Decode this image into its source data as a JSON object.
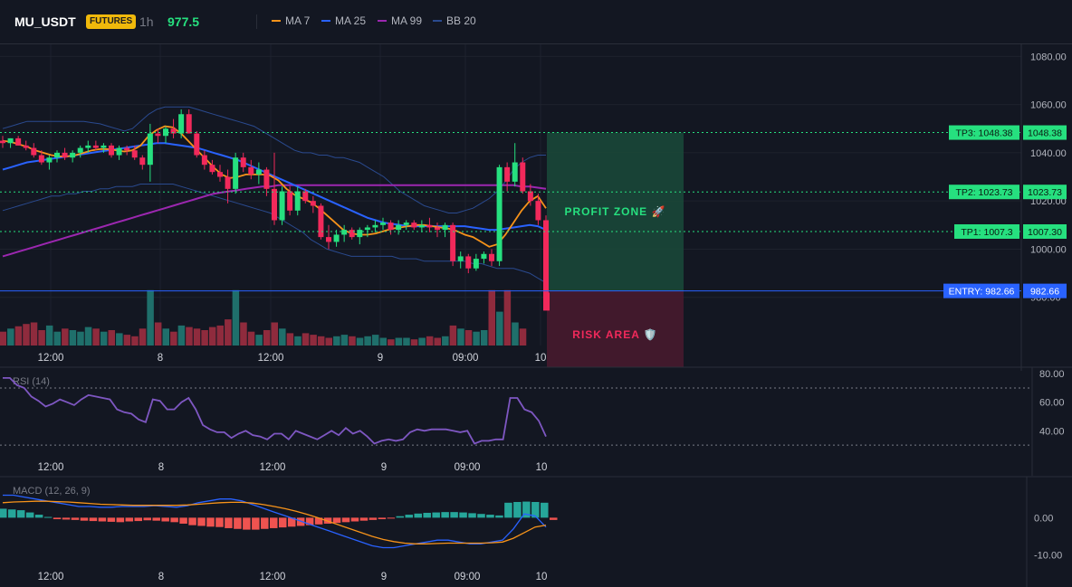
{
  "header": {
    "symbol": "MU_USDT",
    "badge": "FUTURES",
    "timeframe": "1h",
    "last_price": "977.5",
    "legend": [
      {
        "label": "MA 7",
        "color": "#f7931a"
      },
      {
        "label": "MA 25",
        "color": "#2962ff"
      },
      {
        "label": "MA 99",
        "color": "#9c27b0"
      },
      {
        "label": "BB 20",
        "color": "#2a4a8f"
      }
    ]
  },
  "colors": {
    "background": "#131722",
    "up": "#26e07f",
    "down": "#f2295b",
    "up_volume": "#1f6f6b",
    "down_volume": "#8f2b3d",
    "profit_zone": "#1a4a3a",
    "risk_area": "#4a1a2e",
    "entry_line": "#2962ff"
  },
  "chart_data": [
    {
      "type": "candlestick",
      "title": "",
      "ylim": [
        960,
        1085
      ],
      "y_ticks": [
        "1080.00",
        "1060.00",
        "1040.00",
        "1020.00",
        "1000.00",
        "980.00"
      ],
      "x_tick_labels": [
        "12:00",
        "8",
        "12:00",
        "9",
        "09:00",
        "10"
      ],
      "candles": [
        {
          "o": 1045,
          "h": 1047,
          "l": 1042,
          "c": 1044
        },
        {
          "o": 1044,
          "h": 1046,
          "l": 1042,
          "c": 1046
        },
        {
          "o": 1046,
          "h": 1047,
          "l": 1043,
          "c": 1043
        },
        {
          "o": 1043,
          "h": 1045,
          "l": 1041,
          "c": 1042
        },
        {
          "o": 1042,
          "h": 1044,
          "l": 1038,
          "c": 1039
        },
        {
          "o": 1039,
          "h": 1041,
          "l": 1035,
          "c": 1036
        },
        {
          "o": 1036,
          "h": 1039,
          "l": 1033,
          "c": 1038
        },
        {
          "o": 1038,
          "h": 1041,
          "l": 1036,
          "c": 1040
        },
        {
          "o": 1040,
          "h": 1042,
          "l": 1037,
          "c": 1038
        },
        {
          "o": 1038,
          "h": 1041,
          "l": 1036,
          "c": 1040
        },
        {
          "o": 1040,
          "h": 1043,
          "l": 1038,
          "c": 1042
        },
        {
          "o": 1042,
          "h": 1045,
          "l": 1040,
          "c": 1043
        },
        {
          "o": 1043,
          "h": 1045,
          "l": 1041,
          "c": 1042
        },
        {
          "o": 1042,
          "h": 1044,
          "l": 1040,
          "c": 1043
        },
        {
          "o": 1043,
          "h": 1044,
          "l": 1038,
          "c": 1039
        },
        {
          "o": 1039,
          "h": 1043,
          "l": 1037,
          "c": 1042
        },
        {
          "o": 1042,
          "h": 1043,
          "l": 1039,
          "c": 1041
        },
        {
          "o": 1041,
          "h": 1043,
          "l": 1037,
          "c": 1038
        },
        {
          "o": 1038,
          "h": 1039,
          "l": 1033,
          "c": 1035
        },
        {
          "o": 1035,
          "h": 1052,
          "l": 1028,
          "c": 1048
        },
        {
          "o": 1048,
          "h": 1050,
          "l": 1044,
          "c": 1047
        },
        {
          "o": 1047,
          "h": 1051,
          "l": 1044,
          "c": 1050
        },
        {
          "o": 1050,
          "h": 1054,
          "l": 1046,
          "c": 1048
        },
        {
          "o": 1048,
          "h": 1058,
          "l": 1046,
          "c": 1056
        },
        {
          "o": 1056,
          "h": 1058,
          "l": 1049,
          "c": 1048
        },
        {
          "o": 1048,
          "h": 1049,
          "l": 1038,
          "c": 1039
        },
        {
          "o": 1039,
          "h": 1041,
          "l": 1033,
          "c": 1035
        },
        {
          "o": 1035,
          "h": 1037,
          "l": 1031,
          "c": 1032
        },
        {
          "o": 1032,
          "h": 1035,
          "l": 1028,
          "c": 1030
        },
        {
          "o": 1030,
          "h": 1033,
          "l": 1019,
          "c": 1025
        },
        {
          "o": 1025,
          "h": 1040,
          "l": 1023,
          "c": 1038
        },
        {
          "o": 1038,
          "h": 1040,
          "l": 1032,
          "c": 1034
        },
        {
          "o": 1034,
          "h": 1037,
          "l": 1029,
          "c": 1031
        },
        {
          "o": 1031,
          "h": 1036,
          "l": 1027,
          "c": 1033
        },
        {
          "o": 1033,
          "h": 1034,
          "l": 1022,
          "c": 1025
        },
        {
          "o": 1025,
          "h": 1040,
          "l": 1010,
          "c": 1012
        },
        {
          "o": 1012,
          "h": 1026,
          "l": 1010,
          "c": 1024
        },
        {
          "o": 1024,
          "h": 1026,
          "l": 1014,
          "c": 1016
        },
        {
          "o": 1016,
          "h": 1026,
          "l": 1014,
          "c": 1024
        },
        {
          "o": 1024,
          "h": 1025,
          "l": 1019,
          "c": 1020
        },
        {
          "o": 1020,
          "h": 1022,
          "l": 1015,
          "c": 1018
        },
        {
          "o": 1018,
          "h": 1019,
          "l": 1004,
          "c": 1005
        },
        {
          "o": 1005,
          "h": 1010,
          "l": 1000,
          "c": 1003
        },
        {
          "o": 1003,
          "h": 1008,
          "l": 1001,
          "c": 1006
        },
        {
          "o": 1006,
          "h": 1010,
          "l": 1003,
          "c": 1008
        },
        {
          "o": 1008,
          "h": 1009,
          "l": 1004,
          "c": 1005
        },
        {
          "o": 1005,
          "h": 1009,
          "l": 1002,
          "c": 1008
        },
        {
          "o": 1008,
          "h": 1010,
          "l": 1005,
          "c": 1009
        },
        {
          "o": 1009,
          "h": 1012,
          "l": 1007,
          "c": 1010
        },
        {
          "o": 1010,
          "h": 1013,
          "l": 1008,
          "c": 1011
        },
        {
          "o": 1011,
          "h": 1012,
          "l": 1006,
          "c": 1008
        },
        {
          "o": 1008,
          "h": 1012,
          "l": 1006,
          "c": 1010
        },
        {
          "o": 1010,
          "h": 1012,
          "l": 1008,
          "c": 1011
        },
        {
          "o": 1011,
          "h": 1012,
          "l": 1008,
          "c": 1009
        },
        {
          "o": 1009,
          "h": 1012,
          "l": 1007,
          "c": 1010
        },
        {
          "o": 1010,
          "h": 1013,
          "l": 1007,
          "c": 1009
        },
        {
          "o": 1009,
          "h": 1011,
          "l": 1005,
          "c": 1008
        },
        {
          "o": 1008,
          "h": 1011,
          "l": 1005,
          "c": 1010
        },
        {
          "o": 1010,
          "h": 1011,
          "l": 993,
          "c": 995
        },
        {
          "o": 995,
          "h": 999,
          "l": 992,
          "c": 997
        },
        {
          "o": 997,
          "h": 998,
          "l": 990,
          "c": 992
        },
        {
          "o": 992,
          "h": 998,
          "l": 991,
          "c": 996
        },
        {
          "o": 996,
          "h": 999,
          "l": 994,
          "c": 998
        },
        {
          "o": 998,
          "h": 1000,
          "l": 993,
          "c": 995
        },
        {
          "o": 995,
          "h": 1035,
          "l": 993,
          "c": 1034
        },
        {
          "o": 1034,
          "h": 1036,
          "l": 1024,
          "c": 1028
        },
        {
          "o": 1028,
          "h": 1044,
          "l": 1026,
          "c": 1036
        },
        {
          "o": 1036,
          "h": 1038,
          "l": 1023,
          "c": 1024
        },
        {
          "o": 1024,
          "h": 1027,
          "l": 1018,
          "c": 1020
        },
        {
          "o": 1020,
          "h": 1023,
          "l": 1010,
          "c": 1012
        },
        {
          "o": 1012,
          "h": 1014,
          "l": 977,
          "c": 977.5
        }
      ],
      "ma7": [
        1045,
        1044.5,
        1043.5,
        1042.5,
        1041,
        1040,
        1039,
        1038.5,
        1038.5,
        1039,
        1040,
        1041,
        1041.5,
        1041.5,
        1041,
        1040.5,
        1041,
        1043,
        1047,
        1049.5,
        1051,
        1050.5,
        1048,
        1044.5,
        1041,
        1037.5,
        1034,
        1031,
        1029.5,
        1030,
        1031,
        1031,
        1031,
        1030.5,
        1028.5,
        1025,
        1022.5,
        1021,
        1019.5,
        1017,
        1014,
        1011,
        1008,
        1006.5,
        1006,
        1006,
        1006.5,
        1007.5,
        1008.5,
        1009,
        1009.5,
        1010,
        1010,
        1009.5,
        1009,
        1008.5,
        1007.5,
        1006,
        1005,
        1003,
        1001,
        1002,
        1006,
        1011,
        1016,
        1020,
        1022,
        1017
      ],
      "ma25": [
        1033,
        1034,
        1035,
        1036,
        1036.5,
        1037,
        1037.5,
        1038,
        1038.5,
        1039,
        1039.5,
        1040,
        1040.5,
        1041,
        1041.5,
        1042,
        1042.5,
        1043,
        1043.5,
        1044,
        1044,
        1043.5,
        1043,
        1042.5,
        1042,
        1041,
        1040,
        1039,
        1038,
        1037,
        1035.5,
        1034,
        1032.5,
        1031,
        1029.5,
        1028,
        1026.5,
        1025,
        1023.5,
        1022,
        1020.5,
        1019,
        1017.5,
        1016,
        1014.5,
        1013,
        1012,
        1011,
        1010.5,
        1010,
        1009.5,
        1009.5,
        1009.5,
        1009.5,
        1009.5,
        1009.5,
        1009.5,
        1009.5,
        1009,
        1008.5,
        1008,
        1008,
        1008.5,
        1009,
        1009.5,
        1010,
        1009.5,
        1008
      ],
      "ma99": [
        997,
        998,
        999,
        1000,
        1001,
        1002,
        1003,
        1004,
        1005,
        1006,
        1007,
        1008,
        1009,
        1010,
        1011,
        1012,
        1013,
        1014,
        1015,
        1016,
        1017,
        1018,
        1019,
        1020,
        1021,
        1022,
        1023,
        1023.5,
        1024,
        1024.5,
        1025,
        1025.5,
        1026,
        1026,
        1026.5,
        1026.5,
        1026.5,
        1026.5,
        1026.5,
        1026.5,
        1026.5,
        1026.5,
        1026.5,
        1026.5,
        1026.5,
        1026.5,
        1026.5,
        1026.5,
        1026.5,
        1026.5,
        1026.5,
        1026.5,
        1026.5,
        1026.5,
        1026.5,
        1026.5,
        1026.5,
        1026.5,
        1026.5,
        1026.5,
        1026.5,
        1026.5,
        1026.5,
        1026.5,
        1026,
        1026,
        1025.5,
        1025
      ],
      "bb_upper": [
        1050,
        1051,
        1052,
        1053,
        1053,
        1053,
        1053,
        1053,
        1053,
        1053,
        1053,
        1052.5,
        1052,
        1051,
        1050,
        1049,
        1050,
        1053,
        1056,
        1058,
        1059,
        1059,
        1059,
        1059,
        1058,
        1057,
        1056,
        1055,
        1054,
        1053,
        1052,
        1051,
        1049,
        1047,
        1045,
        1043,
        1041,
        1040,
        1040,
        1039,
        1039,
        1038,
        1038,
        1037,
        1036,
        1034,
        1032,
        1030,
        1027,
        1024,
        1022,
        1020,
        1018,
        1017,
        1016,
        1015,
        1015,
        1016,
        1017,
        1019,
        1021,
        1024,
        1028,
        1033,
        1036,
        1038,
        1039,
        1039
      ],
      "bb_lower": [
        1016,
        1017,
        1018,
        1019,
        1020,
        1021,
        1022,
        1022,
        1023,
        1023,
        1024,
        1024,
        1025,
        1025,
        1026,
        1026,
        1026,
        1027,
        1027,
        1027,
        1027,
        1027,
        1026,
        1025,
        1024,
        1023,
        1022,
        1021,
        1020,
        1019,
        1018,
        1017,
        1016,
        1015,
        1013,
        1011,
        1009,
        1007,
        1004,
        1002,
        1000,
        999,
        998,
        997,
        997,
        997,
        997,
        997,
        997,
        996,
        996,
        996,
        995,
        995,
        995,
        995,
        995,
        995,
        994,
        994,
        993,
        992,
        992,
        992,
        991,
        990,
        988,
        986
      ],
      "volume": [
        18,
        22,
        25,
        28,
        30,
        20,
        26,
        18,
        22,
        20,
        18,
        24,
        22,
        18,
        20,
        16,
        14,
        12,
        22,
        72,
        30,
        22,
        18,
        26,
        24,
        22,
        20,
        24,
        26,
        34,
        72,
        30,
        18,
        14,
        20,
        30,
        22,
        16,
        12,
        16,
        14,
        12,
        10,
        12,
        14,
        12,
        10,
        12,
        14,
        10,
        8,
        10,
        10,
        8,
        10,
        12,
        10,
        12,
        26,
        22,
        20,
        18,
        20,
        72,
        44,
        72,
        30,
        22
      ],
      "levels": [
        {
          "label": "TP3: 1048.38",
          "value": 1048.38,
          "axis_label": "1048.38",
          "color": "#26e07f"
        },
        {
          "label": "TP2: 1023.73",
          "value": 1023.73,
          "axis_label": "1023.73",
          "color": "#26e07f"
        },
        {
          "label": "TP1: 1007.3",
          "value": 1007.3,
          "axis_label": "1007.30",
          "color": "#26e07f"
        },
        {
          "label": "ENTRY: 982.66",
          "value": 982.66,
          "axis_label": "982.66",
          "color": "#2962ff"
        }
      ],
      "zones": {
        "profit_label": "PROFIT ZONE 🚀",
        "risk_label": "RISK AREA 🛡️"
      }
    },
    {
      "type": "line",
      "title": "RSI (14)",
      "ylim": [
        25,
        82
      ],
      "y_ticks": [
        "80.00",
        "60.00",
        "40.00"
      ],
      "guides": [
        70,
        30
      ],
      "x_tick_labels": [
        "12:00",
        "8",
        "12:00",
        "9",
        "09:00",
        "10"
      ],
      "values": [
        77,
        77,
        72,
        70,
        64,
        61,
        57,
        59,
        62,
        60,
        58,
        62,
        65,
        64,
        63,
        62,
        55,
        53,
        52,
        48,
        46,
        62,
        61,
        55,
        55,
        60,
        63,
        55,
        44,
        41,
        39,
        39,
        35,
        38,
        40,
        37,
        36,
        34,
        38,
        38,
        34,
        40,
        38,
        36,
        34,
        37,
        40,
        37,
        42,
        38,
        40,
        36,
        31,
        33,
        34,
        33,
        34,
        39,
        41,
        40,
        41,
        41,
        41,
        40,
        39,
        40,
        31,
        33,
        33,
        34,
        34,
        63,
        63,
        55,
        53,
        47,
        36
      ]
    },
    {
      "type": "line",
      "title": "MACD (12, 26, 9)",
      "ylim": [
        -12,
        10
      ],
      "y_ticks": [
        "0.00",
        "-10.00"
      ],
      "x_tick_labels": [
        "12:00",
        "8",
        "12:00",
        "9",
        "09:00",
        "10"
      ],
      "macd": [
        6,
        6,
        5.5,
        5,
        4.5,
        4,
        3.5,
        3,
        3,
        2.8,
        2.8,
        3,
        3,
        3,
        3.2,
        3,
        2.8,
        3.2,
        4,
        4.5,
        5,
        5,
        4.5,
        3.5,
        2.5,
        1.5,
        0.5,
        -0.5,
        -1.5,
        -2.5,
        -3.5,
        -4.5,
        -5.5,
        -6.5,
        -7.5,
        -8,
        -8,
        -7.5,
        -7,
        -6.5,
        -6,
        -6,
        -6.5,
        -7,
        -7,
        -6.5,
        -6,
        -3,
        1,
        0.5,
        -2.5
      ],
      "signal": [
        4,
        4.2,
        4.3,
        4.4,
        4.4,
        4.3,
        4.2,
        4,
        3.8,
        3.6,
        3.5,
        3.4,
        3.3,
        3.3,
        3.3,
        3.3,
        3.3,
        3.4,
        3.6,
        3.8,
        4,
        4.1,
        4.1,
        3.9,
        3.5,
        3,
        2.4,
        1.7,
        0.9,
        0,
        -1,
        -2,
        -3,
        -4,
        -5,
        -5.8,
        -6.4,
        -6.8,
        -7,
        -7,
        -6.9,
        -6.8,
        -6.8,
        -6.8,
        -6.8,
        -6.7,
        -6.5,
        -5.5,
        -4,
        -2.5,
        -2
      ],
      "histogram": [
        2.4,
        2.2,
        2,
        1.4,
        0.8,
        0.2,
        -0.4,
        -0.5,
        -0.6,
        -0.8,
        -0.9,
        -1,
        -1.1,
        -1.2,
        -1,
        -0.9,
        -0.7,
        -0.8,
        -1,
        -1.2,
        -1.6,
        -2,
        -2.2,
        -2.4,
        -2.5,
        -2.8,
        -3,
        -3.2,
        -3.2,
        -3,
        -2.8,
        -2.6,
        -2.4,
        -2.2,
        -2,
        -1.8,
        -1.6,
        -1.4,
        -1.2,
        -1,
        -0.8,
        -0.6,
        -0.4,
        -0.2,
        0.4,
        0.8,
        1.1,
        1.3,
        1.4,
        1.5,
        1.5,
        1.4,
        1.2,
        1,
        0.8,
        0.6,
        4,
        4.2,
        4.3,
        4.2,
        4,
        -0.6
      ]
    }
  ]
}
